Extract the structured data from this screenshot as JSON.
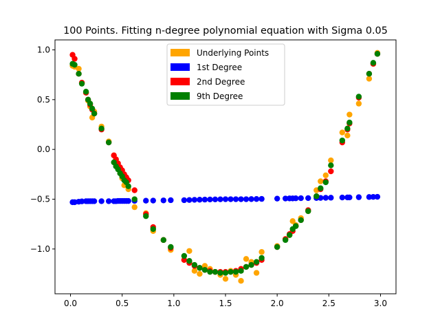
{
  "chart_data": {
    "type": "scatter",
    "title": "100 Points. Fitting n-degree polynomial equation with Sigma 0.05",
    "xlabel": "",
    "ylabel": "",
    "xlim": [
      -0.15,
      3.15
    ],
    "ylim": [
      -1.45,
      1.1
    ],
    "grid": false,
    "legend_position": "top-center",
    "x_ticks": [
      0.0,
      0.5,
      1.0,
      1.5,
      2.0,
      2.5,
      3.0
    ],
    "x_tick_labels": [
      "0.0",
      "0.5",
      "1.0",
      "1.5",
      "2.0",
      "2.5",
      "3.0"
    ],
    "y_ticks": [
      1.0,
      0.5,
      0.0,
      -0.5,
      -1.0
    ],
    "y_tick_labels": [
      "1.0",
      "0.5",
      "0.0",
      "−0.5",
      "−1.0"
    ],
    "x": [
      0.02,
      0.04,
      0.08,
      0.11,
      0.15,
      0.17,
      0.19,
      0.21,
      0.23,
      0.3,
      0.37,
      0.42,
      0.44,
      0.46,
      0.48,
      0.5,
      0.52,
      0.54,
      0.56,
      0.62,
      0.73,
      0.8,
      0.9,
      0.97,
      1.1,
      1.15,
      1.2,
      1.25,
      1.3,
      1.35,
      1.4,
      1.45,
      1.5,
      1.55,
      1.6,
      1.65,
      1.7,
      1.75,
      1.8,
      1.85,
      2.0,
      2.08,
      2.12,
      2.15,
      2.18,
      2.23,
      2.3,
      2.38,
      2.42,
      2.47,
      2.52,
      2.63,
      2.68,
      2.7,
      2.79,
      2.89,
      2.93,
      2.97
    ],
    "series": [
      {
        "name": "Underlying Points",
        "color": "#ffa500",
        "values": [
          0.84,
          0.83,
          0.81,
          0.67,
          0.57,
          0.49,
          0.43,
          0.32,
          0.38,
          0.23,
          0.08,
          -0.06,
          -0.1,
          -0.18,
          -0.24,
          -0.29,
          -0.36,
          -0.31,
          -0.4,
          -0.58,
          -0.64,
          -0.82,
          -0.91,
          -1.01,
          -1.11,
          -1.02,
          -1.22,
          -1.25,
          -1.17,
          -1.2,
          -1.23,
          -1.26,
          -1.3,
          -1.22,
          -1.26,
          -1.32,
          -1.1,
          -1.13,
          -1.24,
          -1.03,
          -0.97,
          -0.9,
          -0.86,
          -0.72,
          -0.76,
          -0.69,
          -0.62,
          -0.41,
          -0.32,
          -0.26,
          -0.11,
          0.17,
          0.14,
          0.35,
          0.46,
          0.71,
          0.86,
          0.97
        ]
      },
      {
        "name": "1st Degree",
        "color": "#0000ff",
        "values": [
          -0.53,
          -0.53,
          -0.525,
          -0.522,
          -0.52,
          -0.52,
          -0.52,
          -0.52,
          -0.52,
          -0.52,
          -0.52,
          -0.52,
          -0.52,
          -0.518,
          -0.518,
          -0.518,
          -0.518,
          -0.518,
          -0.518,
          -0.516,
          -0.515,
          -0.514,
          -0.512,
          -0.51,
          -0.51,
          -0.508,
          -0.506,
          -0.505,
          -0.504,
          -0.503,
          -0.502,
          -0.501,
          -0.5,
          -0.5,
          -0.5,
          -0.5,
          -0.5,
          -0.499,
          -0.498,
          -0.497,
          -0.494,
          -0.493,
          -0.492,
          -0.492,
          -0.491,
          -0.49,
          -0.489,
          -0.488,
          -0.487,
          -0.486,
          -0.485,
          -0.483,
          -0.482,
          -0.482,
          -0.48,
          -0.478,
          -0.477,
          -0.476
        ]
      },
      {
        "name": "2nd Degree",
        "color": "#ff0000",
        "values": [
          0.95,
          0.91,
          0.76,
          0.67,
          0.57,
          0.5,
          0.45,
          0.4,
          0.36,
          0.2,
          0.07,
          -0.06,
          -0.1,
          -0.14,
          -0.18,
          -0.21,
          -0.25,
          -0.28,
          -0.31,
          -0.41,
          -0.65,
          -0.78,
          -0.91,
          -0.99,
          -1.11,
          -1.14,
          -1.17,
          -1.19,
          -1.21,
          -1.22,
          -1.23,
          -1.23,
          -1.23,
          -1.23,
          -1.22,
          -1.2,
          -1.18,
          -1.16,
          -1.14,
          -1.11,
          -0.98,
          -0.9,
          -0.85,
          -0.82,
          -0.77,
          -0.71,
          -0.61,
          -0.47,
          -0.4,
          -0.32,
          -0.22,
          0.07,
          0.2,
          0.26,
          0.52,
          0.76,
          0.86,
          0.96
        ]
      },
      {
        "name": "9th Degree",
        "color": "#008000",
        "values": [
          0.86,
          0.85,
          0.76,
          0.66,
          0.58,
          0.5,
          0.46,
          0.41,
          0.36,
          0.21,
          0.07,
          -0.13,
          -0.17,
          -0.2,
          -0.24,
          -0.27,
          -0.31,
          -0.33,
          -0.37,
          -0.5,
          -0.67,
          -0.8,
          -0.91,
          -0.98,
          -1.07,
          -1.12,
          -1.16,
          -1.19,
          -1.21,
          -1.23,
          -1.23,
          -1.24,
          -1.24,
          -1.23,
          -1.23,
          -1.22,
          -1.18,
          -1.16,
          -1.13,
          -1.09,
          -0.98,
          -0.91,
          -0.86,
          -0.8,
          -0.77,
          -0.71,
          -0.62,
          -0.47,
          -0.39,
          -0.33,
          -0.16,
          0.09,
          0.21,
          0.27,
          0.53,
          0.76,
          0.87,
          0.96
        ]
      }
    ]
  }
}
